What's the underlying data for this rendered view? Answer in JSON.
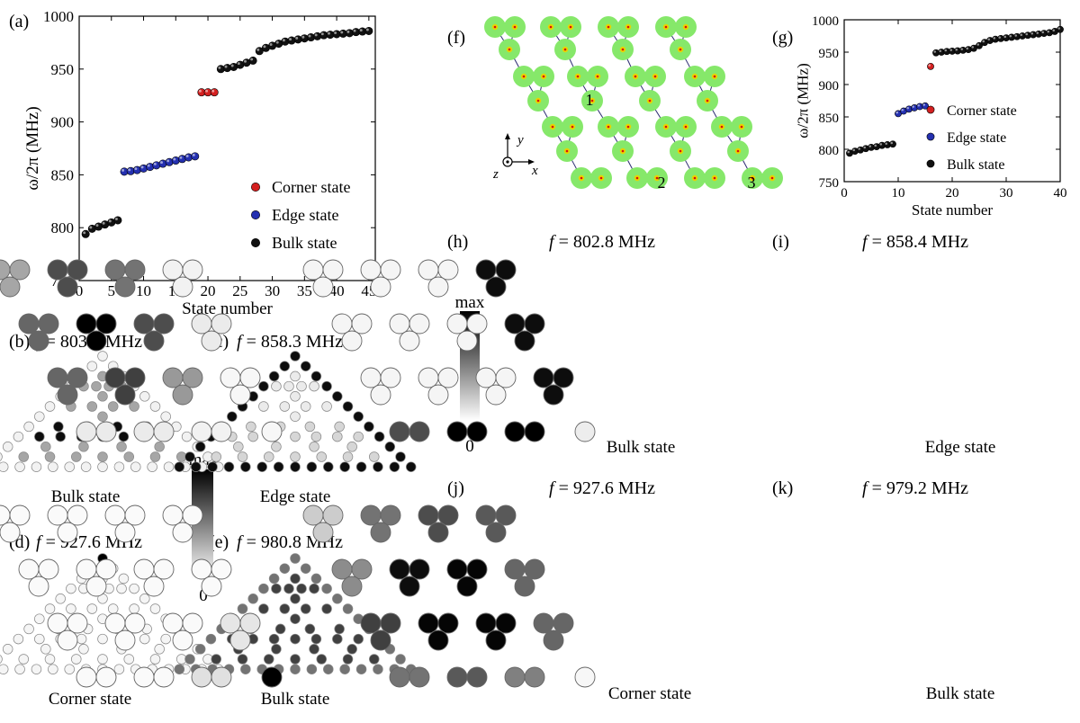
{
  "panels": {
    "a": {
      "letter": "(a)"
    },
    "b": {
      "letter": "(b)",
      "freq": "= 803.6 MHz",
      "label": "Bulk state"
    },
    "c": {
      "letter": "(c)",
      "freq": "= 858.3 MHz",
      "label": "Edge state"
    },
    "d": {
      "letter": "(d)",
      "freq": "= 927.6 MHz",
      "label": "Corner state"
    },
    "e": {
      "letter": "(e)",
      "freq": "= 980.8 MHz",
      "label": "Bulk state"
    },
    "f": {
      "letter": "(f)",
      "site_labels": [
        "1",
        "2",
        "3"
      ],
      "axis_y": "y",
      "axis_x": "x",
      "axis_z": "z"
    },
    "g": {
      "letter": "(g)"
    },
    "h": {
      "letter": "(h)",
      "freq": "= 802.8 MHz",
      "label": "Bulk state"
    },
    "i": {
      "letter": "(i)",
      "freq": "= 858.4 MHz",
      "label": "Edge state"
    },
    "j": {
      "letter": "(j)",
      "freq": "= 927.6 MHz",
      "label": "Corner state"
    },
    "k": {
      "letter": "(k)",
      "freq": "= 979.2 MHz",
      "label": "Bulk state"
    }
  },
  "f_symbol": "f",
  "colorbar": {
    "max": "max",
    "min": "0"
  },
  "colors": {
    "corner": "#d42020",
    "edge": "#2430b0",
    "bulk": "#111111",
    "lattice_disk": "#86e86a",
    "site_dot": "#e8d400",
    "lattice_line": "#2a2a70"
  },
  "chart_data": [
    {
      "type": "scatter",
      "panel": "a",
      "xlabel": "State number",
      "ylabel": "ω/2π (MHz)",
      "xlim": [
        0,
        46
      ],
      "ylim": [
        750,
        1000
      ],
      "xticks": [
        0,
        5,
        10,
        15,
        20,
        25,
        30,
        35,
        40,
        45
      ],
      "yticks": [
        750,
        800,
        850,
        900,
        950,
        1000
      ],
      "legend_position": "right",
      "series": [
        {
          "name": "Corner state",
          "color": "#d42020",
          "x": [
            19,
            20,
            21
          ],
          "y": [
            928,
            928,
            928
          ]
        },
        {
          "name": "Edge state",
          "color": "#2430b0",
          "x": [
            7,
            8,
            9,
            10,
            11,
            12,
            13,
            14,
            15,
            16,
            17,
            18
          ],
          "y": [
            853,
            853.5,
            854.5,
            856,
            857.5,
            859,
            860.5,
            862,
            863.5,
            865,
            866.5,
            867.5
          ]
        },
        {
          "name": "Bulk state",
          "color": "#111111",
          "x": [
            1,
            2,
            3,
            4,
            5,
            6,
            22,
            23,
            24,
            25,
            26,
            27,
            28,
            29,
            30,
            31,
            32,
            33,
            34,
            35,
            36,
            37,
            38,
            39,
            40,
            41,
            42,
            43,
            44,
            45
          ],
          "y": [
            794,
            799,
            801,
            803,
            805,
            807,
            950,
            951,
            952,
            954,
            956,
            958,
            967,
            970,
            972,
            974,
            976,
            977,
            978,
            979,
            980,
            981,
            982,
            982.5,
            983,
            983.5,
            984,
            985,
            985.5,
            986
          ]
        }
      ]
    },
    {
      "type": "scatter",
      "panel": "g",
      "xlabel": "State number",
      "ylabel": "ω/2π (MHz)",
      "xlim": [
        0,
        40
      ],
      "ylim": [
        750,
        1000
      ],
      "xticks": [
        0,
        10,
        20,
        30,
        40
      ],
      "yticks": [
        750,
        800,
        850,
        900,
        950,
        1000
      ],
      "legend_position": "right",
      "series": [
        {
          "name": "Corner state",
          "color": "#d42020",
          "x": [
            16
          ],
          "y": [
            928
          ]
        },
        {
          "name": "Edge state",
          "color": "#2430b0",
          "x": [
            10,
            11,
            12,
            13,
            14,
            15
          ],
          "y": [
            855,
            859,
            862,
            864,
            866,
            867
          ]
        },
        {
          "name": "Bulk state",
          "color": "#111111",
          "x": [
            1,
            2,
            3,
            4,
            5,
            6,
            7,
            8,
            9,
            17,
            18,
            19,
            20,
            21,
            22,
            23,
            24,
            25,
            26,
            27,
            28,
            29,
            30,
            31,
            32,
            33,
            34,
            35,
            36,
            37,
            38,
            39,
            40
          ],
          "y": [
            794,
            797,
            799,
            801,
            803,
            804,
            806,
            807,
            808,
            949,
            950,
            951,
            951.5,
            952,
            953,
            954,
            956,
            960,
            965,
            968,
            970,
            971,
            972,
            973,
            974,
            975,
            976,
            977,
            978,
            979,
            980,
            982,
            985
          ]
        }
      ]
    }
  ]
}
